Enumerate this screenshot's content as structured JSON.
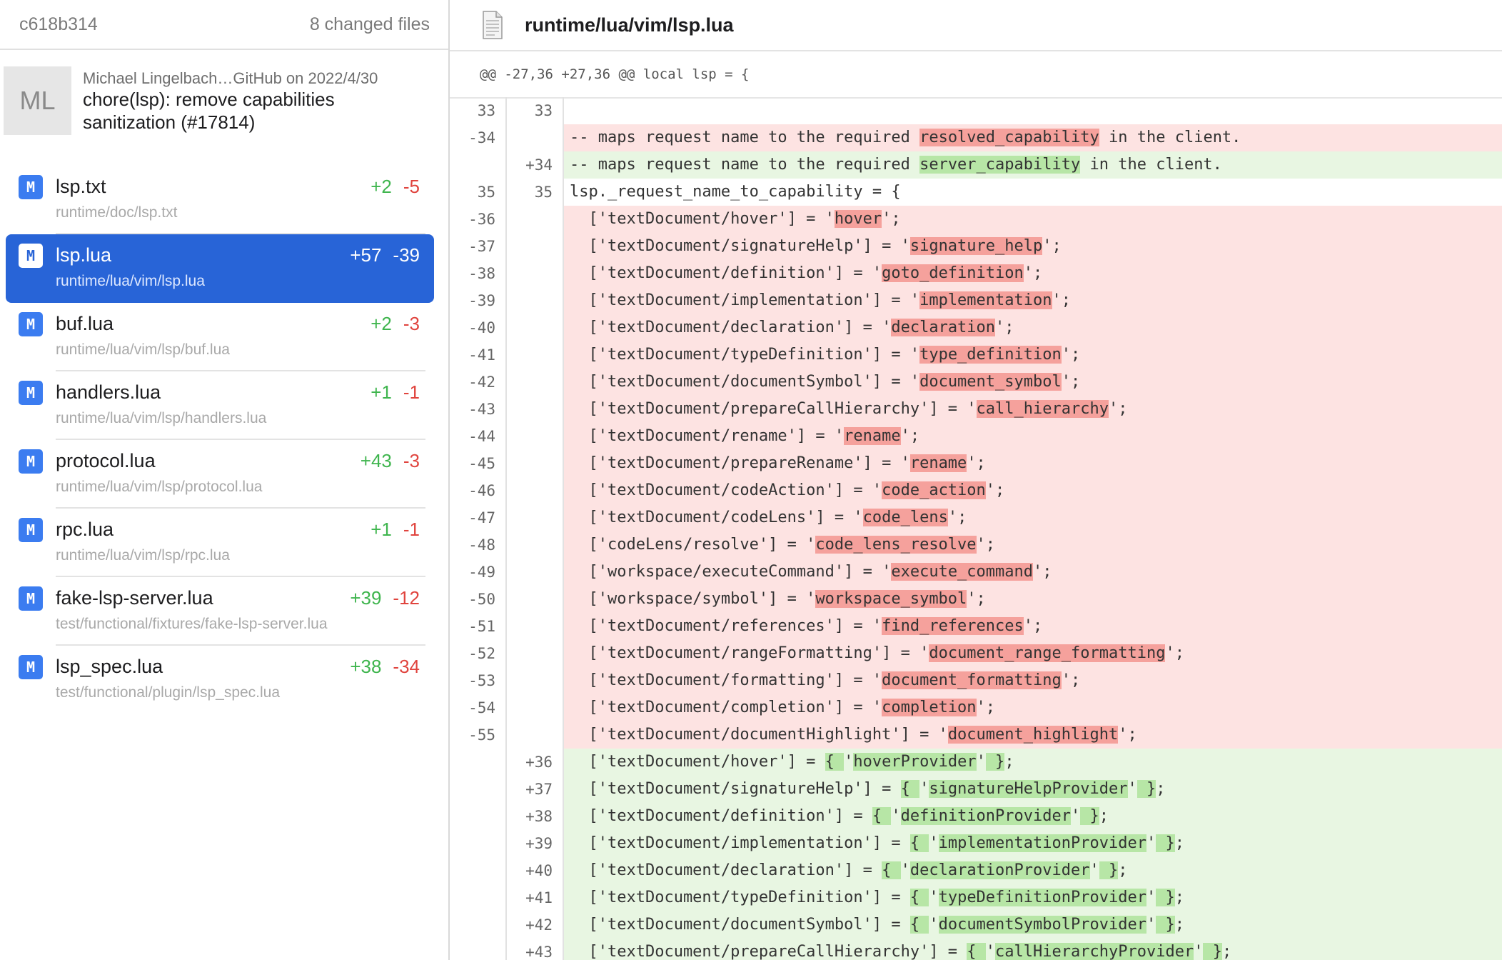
{
  "sidebar": {
    "commit_hash": "c618b314",
    "changed_files": "8 changed files",
    "avatar_initials": "ML",
    "commit_meta": "Michael Lingelbach…GitHub on 2022/4/30",
    "commit_message": "chore(lsp): remove capabilities sanitization (#17814)",
    "files": [
      {
        "status": "M",
        "name": "lsp.txt",
        "path": "runtime/doc/lsp.txt",
        "added": "+2",
        "deleted": "-5",
        "selected": false
      },
      {
        "status": "M",
        "name": "lsp.lua",
        "path": "runtime/lua/vim/lsp.lua",
        "added": "+57",
        "deleted": "-39",
        "selected": true
      },
      {
        "status": "M",
        "name": "buf.lua",
        "path": "runtime/lua/vim/lsp/buf.lua",
        "added": "+2",
        "deleted": "-3",
        "selected": false
      },
      {
        "status": "M",
        "name": "handlers.lua",
        "path": "runtime/lua/vim/lsp/handlers.lua",
        "added": "+1",
        "deleted": "-1",
        "selected": false
      },
      {
        "status": "M",
        "name": "protocol.lua",
        "path": "runtime/lua/vim/lsp/protocol.lua",
        "added": "+43",
        "deleted": "-3",
        "selected": false
      },
      {
        "status": "M",
        "name": "rpc.lua",
        "path": "runtime/lua/vim/lsp/rpc.lua",
        "added": "+1",
        "deleted": "-1",
        "selected": false
      },
      {
        "status": "M",
        "name": "fake-lsp-server.lua",
        "path": "test/functional/fixtures/fake-lsp-server.lua",
        "added": "+39",
        "deleted": "-12",
        "selected": false
      },
      {
        "status": "M",
        "name": "lsp_spec.lua",
        "path": "test/functional/plugin/lsp_spec.lua",
        "added": "+38",
        "deleted": "-34",
        "selected": false
      }
    ]
  },
  "main": {
    "title": "runtime/lua/vim/lsp.lua",
    "file_icon": "document-icon",
    "hunk_header": "@@ -27,36 +27,36 @@ local lsp = {",
    "lines": [
      {
        "type": "ctx",
        "old": "33",
        "new": "33",
        "parts": [
          [
            "",
            ""
          ]
        ]
      },
      {
        "type": "del",
        "old": "-34",
        "new": "",
        "parts": [
          [
            "",
            "-- maps request name to the required "
          ],
          [
            "h",
            "resolved_capability"
          ],
          [
            "",
            " in the client."
          ]
        ]
      },
      {
        "type": "add",
        "old": "",
        "new": "+34",
        "parts": [
          [
            "",
            "-- maps request name to the required "
          ],
          [
            "h",
            "server_capability"
          ],
          [
            "",
            " in the client."
          ]
        ]
      },
      {
        "type": "ctx",
        "old": "35",
        "new": "35",
        "parts": [
          [
            "",
            "lsp._request_name_to_capability = {"
          ]
        ]
      },
      {
        "type": "del",
        "old": "-36",
        "new": "",
        "parts": [
          [
            "",
            "  ['textDocument/hover'] = '"
          ],
          [
            "h",
            "hover"
          ],
          [
            "",
            "';"
          ]
        ]
      },
      {
        "type": "del",
        "old": "-37",
        "new": "",
        "parts": [
          [
            "",
            "  ['textDocument/signatureHelp'] = '"
          ],
          [
            "h",
            "signature_help"
          ],
          [
            "",
            "';"
          ]
        ]
      },
      {
        "type": "del",
        "old": "-38",
        "new": "",
        "parts": [
          [
            "",
            "  ['textDocument/definition'] = '"
          ],
          [
            "h",
            "goto_definition"
          ],
          [
            "",
            "';"
          ]
        ]
      },
      {
        "type": "del",
        "old": "-39",
        "new": "",
        "parts": [
          [
            "",
            "  ['textDocument/implementation'] = '"
          ],
          [
            "h",
            "implementation"
          ],
          [
            "",
            "';"
          ]
        ]
      },
      {
        "type": "del",
        "old": "-40",
        "new": "",
        "parts": [
          [
            "",
            "  ['textDocument/declaration'] = '"
          ],
          [
            "h",
            "declaration"
          ],
          [
            "",
            "';"
          ]
        ]
      },
      {
        "type": "del",
        "old": "-41",
        "new": "",
        "parts": [
          [
            "",
            "  ['textDocument/typeDefinition'] = '"
          ],
          [
            "h",
            "type_definition"
          ],
          [
            "",
            "';"
          ]
        ]
      },
      {
        "type": "del",
        "old": "-42",
        "new": "",
        "parts": [
          [
            "",
            "  ['textDocument/documentSymbol'] = '"
          ],
          [
            "h",
            "document_symbol"
          ],
          [
            "",
            "';"
          ]
        ]
      },
      {
        "type": "del",
        "old": "-43",
        "new": "",
        "parts": [
          [
            "",
            "  ['textDocument/prepareCallHierarchy'] = '"
          ],
          [
            "h",
            "call_hierarchy"
          ],
          [
            "",
            "';"
          ]
        ]
      },
      {
        "type": "del",
        "old": "-44",
        "new": "",
        "parts": [
          [
            "",
            "  ['textDocument/rename'] = '"
          ],
          [
            "h",
            "rename"
          ],
          [
            "",
            "';"
          ]
        ]
      },
      {
        "type": "del",
        "old": "-45",
        "new": "",
        "parts": [
          [
            "",
            "  ['textDocument/prepareRename'] = '"
          ],
          [
            "h",
            "rename"
          ],
          [
            "",
            "';"
          ]
        ]
      },
      {
        "type": "del",
        "old": "-46",
        "new": "",
        "parts": [
          [
            "",
            "  ['textDocument/codeAction'] = '"
          ],
          [
            "h",
            "code_action"
          ],
          [
            "",
            "';"
          ]
        ]
      },
      {
        "type": "del",
        "old": "-47",
        "new": "",
        "parts": [
          [
            "",
            "  ['textDocument/codeLens'] = '"
          ],
          [
            "h",
            "code_lens"
          ],
          [
            "",
            "';"
          ]
        ]
      },
      {
        "type": "del",
        "old": "-48",
        "new": "",
        "parts": [
          [
            "",
            "  ['codeLens/resolve'] = '"
          ],
          [
            "h",
            "code_lens_resolve"
          ],
          [
            "",
            "';"
          ]
        ]
      },
      {
        "type": "del",
        "old": "-49",
        "new": "",
        "parts": [
          [
            "",
            "  ['workspace/executeCommand'] = '"
          ],
          [
            "h",
            "execute_command"
          ],
          [
            "",
            "';"
          ]
        ]
      },
      {
        "type": "del",
        "old": "-50",
        "new": "",
        "parts": [
          [
            "",
            "  ['workspace/symbol'] = '"
          ],
          [
            "h",
            "workspace_symbol"
          ],
          [
            "",
            "';"
          ]
        ]
      },
      {
        "type": "del",
        "old": "-51",
        "new": "",
        "parts": [
          [
            "",
            "  ['textDocument/references'] = '"
          ],
          [
            "h",
            "find_references"
          ],
          [
            "",
            "';"
          ]
        ]
      },
      {
        "type": "del",
        "old": "-52",
        "new": "",
        "parts": [
          [
            "",
            "  ['textDocument/rangeFormatting'] = '"
          ],
          [
            "h",
            "document_range_formatting"
          ],
          [
            "",
            "';"
          ]
        ]
      },
      {
        "type": "del",
        "old": "-53",
        "new": "",
        "parts": [
          [
            "",
            "  ['textDocument/formatting'] = '"
          ],
          [
            "h",
            "document_formatting"
          ],
          [
            "",
            "';"
          ]
        ]
      },
      {
        "type": "del",
        "old": "-54",
        "new": "",
        "parts": [
          [
            "",
            "  ['textDocument/completion'] = '"
          ],
          [
            "h",
            "completion"
          ],
          [
            "",
            "';"
          ]
        ]
      },
      {
        "type": "del",
        "old": "-55",
        "new": "",
        "parts": [
          [
            "",
            "  ['textDocument/documentHighlight'] = '"
          ],
          [
            "h",
            "document_highlight"
          ],
          [
            "",
            "';"
          ]
        ]
      },
      {
        "type": "add",
        "old": "",
        "new": "+36",
        "parts": [
          [
            "",
            "  ['textDocument/hover'] = "
          ],
          [
            "h",
            "{ "
          ],
          [
            "",
            "'"
          ],
          [
            "h",
            "hoverProvider"
          ],
          [
            "",
            "'"
          ],
          [
            "h",
            " }"
          ],
          [
            "",
            ";"
          ]
        ]
      },
      {
        "type": "add",
        "old": "",
        "new": "+37",
        "parts": [
          [
            "",
            "  ['textDocument/signatureHelp'] = "
          ],
          [
            "h",
            "{ "
          ],
          [
            "",
            "'"
          ],
          [
            "h",
            "signatureHelpProvider"
          ],
          [
            "",
            "'"
          ],
          [
            "h",
            " }"
          ],
          [
            "",
            ";"
          ]
        ]
      },
      {
        "type": "add",
        "old": "",
        "new": "+38",
        "parts": [
          [
            "",
            "  ['textDocument/definition'] = "
          ],
          [
            "h",
            "{ "
          ],
          [
            "",
            "'"
          ],
          [
            "h",
            "definitionProvider"
          ],
          [
            "",
            "'"
          ],
          [
            "h",
            " }"
          ],
          [
            "",
            ";"
          ]
        ]
      },
      {
        "type": "add",
        "old": "",
        "new": "+39",
        "parts": [
          [
            "",
            "  ['textDocument/implementation'] = "
          ],
          [
            "h",
            "{ "
          ],
          [
            "",
            "'"
          ],
          [
            "h",
            "implementationProvider"
          ],
          [
            "",
            "'"
          ],
          [
            "h",
            " }"
          ],
          [
            "",
            ";"
          ]
        ]
      },
      {
        "type": "add",
        "old": "",
        "new": "+40",
        "parts": [
          [
            "",
            "  ['textDocument/declaration'] = "
          ],
          [
            "h",
            "{ "
          ],
          [
            "",
            "'"
          ],
          [
            "h",
            "declarationProvider"
          ],
          [
            "",
            "'"
          ],
          [
            "h",
            " }"
          ],
          [
            "",
            ";"
          ]
        ]
      },
      {
        "type": "add",
        "old": "",
        "new": "+41",
        "parts": [
          [
            "",
            "  ['textDocument/typeDefinition'] = "
          ],
          [
            "h",
            "{ "
          ],
          [
            "",
            "'"
          ],
          [
            "h",
            "typeDefinitionProvider"
          ],
          [
            "",
            "'"
          ],
          [
            "h",
            " }"
          ],
          [
            "",
            ";"
          ]
        ]
      },
      {
        "type": "add",
        "old": "",
        "new": "+42",
        "parts": [
          [
            "",
            "  ['textDocument/documentSymbol'] = "
          ],
          [
            "h",
            "{ "
          ],
          [
            "",
            "'"
          ],
          [
            "h",
            "documentSymbolProvider"
          ],
          [
            "",
            "'"
          ],
          [
            "h",
            " }"
          ],
          [
            "",
            ";"
          ]
        ]
      },
      {
        "type": "add",
        "old": "",
        "new": "+43",
        "parts": [
          [
            "",
            "  ['textDocument/prepareCallHierarchy'] = "
          ],
          [
            "h",
            "{ "
          ],
          [
            "",
            "'"
          ],
          [
            "h",
            "callHierarchyProvider"
          ],
          [
            "",
            "'"
          ],
          [
            "h",
            " }"
          ],
          [
            "",
            ";"
          ]
        ]
      }
    ]
  },
  "colors": {
    "accent": "#2864d7",
    "added": "#3fb54e",
    "deleted": "#e0443e",
    "added_bg": "#e8f6e2",
    "deleted_bg": "#fde3e2",
    "added_highlight": "#b7e6a6",
    "deleted_highlight": "#f5a19c"
  }
}
